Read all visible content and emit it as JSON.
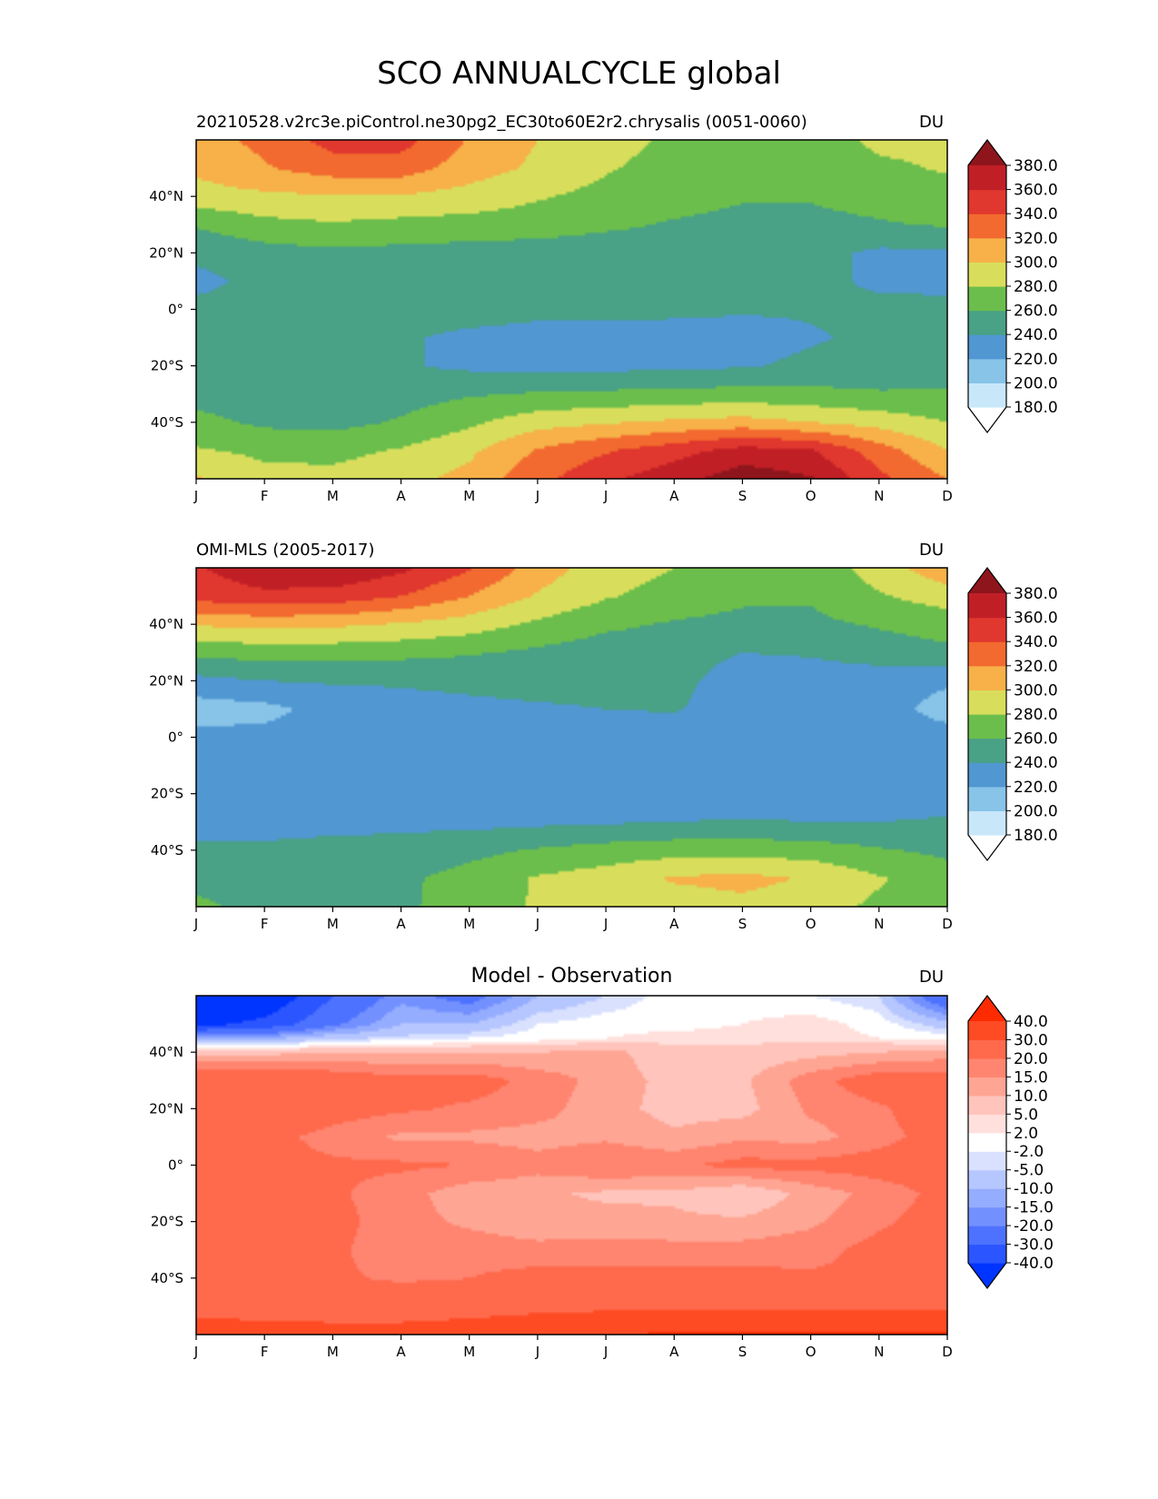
{
  "figure_title": "SCO ANNUALCYCLE global",
  "colors": {
    "levels_abs": [
      "#ffffff",
      "#c8e8fa",
      "#87c4e8",
      "#5197d2",
      "#49a186",
      "#6bbe4b",
      "#d8de5b",
      "#f7b148",
      "#f26a2f",
      "#e0372e",
      "#c11f26",
      "#8e151c"
    ],
    "levels_diff": [
      "#0034ff",
      "#2a55ff",
      "#4d72ff",
      "#7390ff",
      "#95adff",
      "#b6c6ff",
      "#d9e1ff",
      "#ffffff",
      "#ffe0dc",
      "#ffc4bb",
      "#ffa593",
      "#ff8570",
      "#ff6a4d",
      "#ff4b24",
      "#ff2b00"
    ]
  },
  "chart_data": [
    {
      "type": "contourf",
      "panel": "model",
      "title_left": "20210528.v2rc3e.piControl.ne30pg2_EC30to60E2r2.chrysalis (0051-0060)",
      "title_center": "",
      "units": "DU",
      "x_tick_labels": [
        "J",
        "F",
        "M",
        "A",
        "M",
        "J",
        "J",
        "A",
        "S",
        "O",
        "N",
        "D"
      ],
      "y_tick_values": [
        40,
        20,
        0,
        -20,
        -40
      ],
      "y_tick_labels": [
        "40°N",
        "20°N",
        "0°",
        "20°S",
        "40°S"
      ],
      "xlim": [
        0,
        11
      ],
      "ylim": [
        -60,
        60
      ],
      "colorbar": {
        "levels": [
          180,
          200,
          220,
          240,
          260,
          280,
          300,
          320,
          340,
          360,
          380
        ],
        "labels": [
          "380.0",
          "360.0",
          "340.0",
          "320.0",
          "300.0",
          "280.0",
          "260.0",
          "240.0",
          "220.0",
          "200.0",
          "180.0"
        ],
        "extend": "both"
      },
      "rows": [
        {
          "lat": 60,
          "values": [
            312,
            325,
            348,
            348,
            318,
            300,
            288,
            276,
            268,
            268,
            285,
            285
          ]
        },
        {
          "lat": 50,
          "values": [
            304,
            318,
            330,
            330,
            310,
            296,
            282,
            272,
            266,
            266,
            276,
            282
          ]
        },
        {
          "lat": 40,
          "values": [
            292,
            296,
            298,
            298,
            292,
            282,
            274,
            268,
            262,
            262,
            268,
            272
          ]
        },
        {
          "lat": 30,
          "values": [
            262,
            274,
            278,
            274,
            272,
            270,
            264,
            258,
            254,
            254,
            258,
            262
          ]
        },
        {
          "lat": 20,
          "values": [
            245,
            252,
            256,
            254,
            252,
            250,
            248,
            248,
            246,
            246,
            236,
            236
          ]
        },
        {
          "lat": 10,
          "values": [
            234,
            246,
            250,
            250,
            250,
            250,
            256,
            256,
            246,
            246,
            236,
            234
          ]
        },
        {
          "lat": 0,
          "values": [
            246,
            248,
            248,
            248,
            248,
            244,
            244,
            244,
            242,
            242,
            246,
            246
          ]
        },
        {
          "lat": -10,
          "values": [
            248,
            248,
            246,
            242,
            236,
            234,
            234,
            232,
            232,
            238,
            244,
            246
          ]
        },
        {
          "lat": -20,
          "values": [
            250,
            248,
            246,
            242,
            236,
            234,
            234,
            236,
            238,
            244,
            248,
            250
          ]
        },
        {
          "lat": -30,
          "values": [
            252,
            250,
            248,
            252,
            258,
            262,
            264,
            266,
            268,
            266,
            262,
            262
          ]
        },
        {
          "lat": -40,
          "values": [
            266,
            256,
            254,
            262,
            276,
            292,
            298,
            304,
            308,
            300,
            292,
            280
          ]
        },
        {
          "lat": -50,
          "values": [
            282,
            276,
            274,
            282,
            296,
            322,
            338,
            352,
            368,
            362,
            330,
            300
          ]
        },
        {
          "lat": -60,
          "values": [
            302,
            286,
            286,
            294,
            306,
            334,
            356,
            372,
            392,
            382,
            345,
            320
          ]
        }
      ]
    },
    {
      "type": "contourf",
      "panel": "observation",
      "title_left": "OMI-MLS (2005-2017)",
      "title_center": "",
      "units": "DU",
      "x_tick_labels": [
        "J",
        "F",
        "M",
        "A",
        "M",
        "J",
        "J",
        "A",
        "S",
        "O",
        "N",
        "D"
      ],
      "y_tick_values": [
        40,
        20,
        0,
        -20,
        -40
      ],
      "y_tick_labels": [
        "40°N",
        "20°N",
        "0°",
        "20°S",
        "40°S"
      ],
      "xlim": [
        0,
        11
      ],
      "ylim": [
        -60,
        60
      ],
      "colorbar": {
        "levels": [
          180,
          200,
          220,
          240,
          260,
          280,
          300,
          320,
          340,
          360,
          380
        ],
        "labels": [
          "380.0",
          "360.0",
          "340.0",
          "320.0",
          "300.0",
          "280.0",
          "260.0",
          "240.0",
          "220.0",
          "200.0",
          "180.0"
        ],
        "extend": "both"
      },
      "rows": [
        {
          "lat": 60,
          "values": [
            358,
            375,
            378,
            365,
            342,
            310,
            290,
            280,
            270,
            266,
            290,
            315
          ]
        },
        {
          "lat": 50,
          "values": [
            348,
            355,
            352,
            340,
            320,
            298,
            282,
            272,
            264,
            262,
            278,
            290
          ]
        },
        {
          "lat": 40,
          "values": [
            302,
            306,
            304,
            298,
            290,
            276,
            264,
            258,
            254,
            256,
            262,
            268
          ]
        },
        {
          "lat": 30,
          "values": [
            266,
            268,
            268,
            266,
            262,
            256,
            250,
            248,
            240,
            242,
            250,
            256
          ]
        },
        {
          "lat": 20,
          "values": [
            234,
            240,
            242,
            242,
            244,
            246,
            246,
            246,
            230,
            230,
            228,
            222
          ]
        },
        {
          "lat": 10,
          "values": [
            210,
            214,
            228,
            234,
            236,
            238,
            240,
            242,
            228,
            228,
            226,
            214
          ]
        },
        {
          "lat": 0,
          "values": [
            226,
            226,
            228,
            228,
            228,
            228,
            226,
            226,
            228,
            228,
            228,
            226
          ]
        },
        {
          "lat": -10,
          "values": [
            230,
            230,
            230,
            230,
            228,
            226,
            224,
            224,
            224,
            226,
            228,
            230
          ]
        },
        {
          "lat": -20,
          "values": [
            232,
            232,
            232,
            232,
            230,
            228,
            226,
            226,
            226,
            228,
            230,
            232
          ]
        },
        {
          "lat": -30,
          "values": [
            236,
            236,
            236,
            236,
            234,
            236,
            238,
            240,
            242,
            240,
            240,
            242
          ]
        },
        {
          "lat": -40,
          "values": [
            242,
            242,
            244,
            246,
            254,
            262,
            268,
            272,
            272,
            270,
            262,
            256
          ]
        },
        {
          "lat": -50,
          "values": [
            254,
            250,
            248,
            256,
            268,
            282,
            290,
            302,
            306,
            298,
            282,
            268
          ]
        },
        {
          "lat": -60,
          "values": [
            264,
            254,
            246,
            256,
            270,
            282,
            286,
            290,
            294,
            288,
            276,
            270
          ]
        }
      ]
    },
    {
      "type": "contourf",
      "panel": "difference",
      "title_left": "",
      "title_center": "Model - Observation",
      "units": "DU",
      "x_tick_labels": [
        "J",
        "F",
        "M",
        "A",
        "M",
        "J",
        "J",
        "A",
        "S",
        "O",
        "N",
        "D"
      ],
      "y_tick_values": [
        40,
        20,
        0,
        -20,
        -40
      ],
      "y_tick_labels": [
        "40°N",
        "20°N",
        "0°",
        "20°S",
        "40°S"
      ],
      "xlim": [
        0,
        11
      ],
      "ylim": [
        -60,
        60
      ],
      "colorbar": {
        "levels": [
          -40,
          -30,
          -20,
          -15,
          -10,
          -5,
          -2,
          2,
          5,
          10,
          15,
          20,
          30,
          40
        ],
        "labels": [
          "40.0",
          "30.0",
          "20.0",
          "15.0",
          "10.0",
          "5.0",
          "2.0",
          "-2.0",
          "-5.0",
          "-10.0",
          "-15.0",
          "-20.0",
          "-30.0",
          "-40.0"
        ],
        "extend": "both"
      },
      "rows": [
        {
          "lat": 60,
          "values": [
            -46,
            -50,
            -30,
            -17,
            -24,
            -10,
            -5,
            0,
            0,
            -2,
            -5,
            -30
          ]
        },
        {
          "lat": 50,
          "values": [
            -44,
            -37,
            -22,
            -10,
            -10,
            -2,
            0,
            0,
            2,
            4,
            0,
            -8
          ]
        },
        {
          "lat": 45,
          "values": [
            -12,
            -12,
            -6,
            -4,
            -2,
            0,
            2,
            4,
            4,
            4,
            2,
            0
          ]
        },
        {
          "lat": 40,
          "values": [
            8,
            8,
            10,
            10,
            10,
            10,
            12,
            6,
            6,
            8,
            10,
            12
          ]
        },
        {
          "lat": 30,
          "values": [
            29,
            28,
            25,
            22,
            23,
            18,
            13,
            8,
            9,
            18,
            24,
            24
          ]
        },
        {
          "lat": 20,
          "values": [
            25,
            25,
            23,
            21,
            19,
            17,
            12,
            8,
            8,
            16,
            19,
            25
          ]
        },
        {
          "lat": 10,
          "values": [
            23,
            22,
            18,
            14,
            14,
            13,
            14,
            11,
            14,
            13,
            18,
            23
          ]
        },
        {
          "lat": 0,
          "values": [
            22,
            22,
            21,
            21,
            20,
            17,
            20,
            19,
            22,
            22,
            23,
            24
          ]
        },
        {
          "lat": -10,
          "values": [
            25,
            24,
            21,
            17,
            12,
            11,
            9,
            9,
            5,
            12,
            17,
            22
          ]
        },
        {
          "lat": -20,
          "values": [
            24,
            24,
            22,
            17,
            14,
            11,
            12,
            11,
            11,
            14,
            19,
            23
          ]
        },
        {
          "lat": -30,
          "values": [
            24,
            24,
            21,
            17,
            18,
            17,
            17,
            17,
            17,
            18,
            22,
            24
          ]
        },
        {
          "lat": -40,
          "values": [
            24,
            23,
            21,
            19,
            20,
            22,
            22,
            22,
            22,
            21,
            21,
            24
          ]
        },
        {
          "lat": -50,
          "values": [
            28,
            27,
            26,
            26,
            27,
            28,
            28,
            28,
            28,
            28,
            28,
            28
          ]
        },
        {
          "lat": -60,
          "values": [
            33,
            33,
            33,
            33,
            34,
            36,
            40,
            41,
            42,
            42,
            42,
            42
          ]
        }
      ]
    }
  ]
}
